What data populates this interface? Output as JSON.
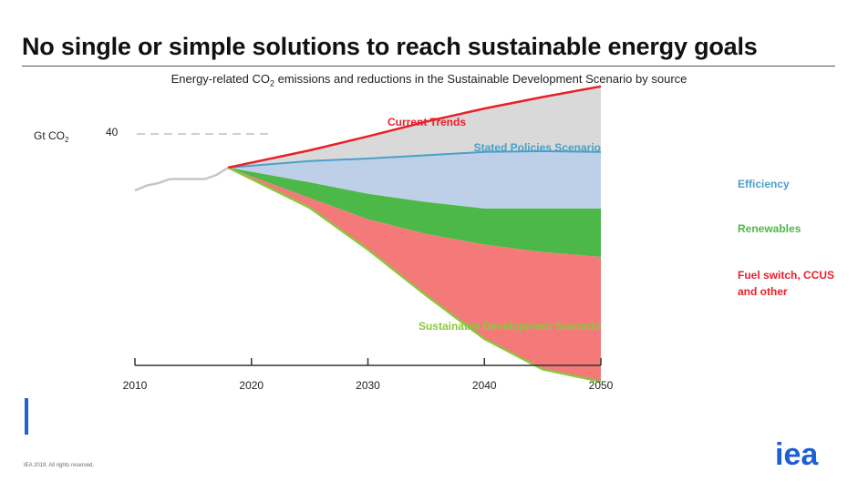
{
  "header": {
    "title": "No single or simple solutions to reach sustainable energy goals",
    "subtitle_prefix": "Energy-related CO",
    "subtitle_sub": "2",
    "subtitle_suffix": " emissions and reductions in the Sustainable Development Scenario by source"
  },
  "footer": {
    "copyright": "IEA 2019. All rights reserved.",
    "logo_text": "iea"
  },
  "colors": {
    "current_trends": "#e8202a",
    "stated_policies": "#4aa0c8",
    "historical": "#c6c6c6",
    "gap_fill": "#d9d9d9",
    "efficiency": "#bed0e8",
    "renewables": "#4cb848",
    "fuel_switch": "#f47a7a",
    "sds_line": "#8cc63f",
    "efficiency_label": "#4aa0c8",
    "renewables_label": "#4cb848",
    "fuel_switch_label": "#e8202a",
    "accent": "#1f5fd6"
  },
  "chart_data": {
    "type": "area",
    "title": "Energy-related CO2 emissions and reductions in the Sustainable Development Scenario by source",
    "ylabel": "Gt CO",
    "ylabel_sub": "2",
    "y_ref": {
      "value": 40,
      "label": "40",
      "style": "dashed"
    },
    "xlim": [
      2010,
      2050
    ],
    "ylim": [
      0,
      45
    ],
    "x_ticks": [
      2010,
      2020,
      2030,
      2040,
      2050
    ],
    "x_tick_labels": [
      "2010",
      "2020",
      "2030",
      "2040",
      "2050"
    ],
    "historical": {
      "x": [
        2010,
        2011,
        2012,
        2013,
        2014,
        2015,
        2016,
        2017,
        2018
      ],
      "y": [
        33.1,
        33.7,
        34.0,
        34.5,
        34.5,
        34.5,
        34.5,
        35.0,
        35.9
      ]
    },
    "series": [
      {
        "name": "Current Trends",
        "x": [
          2018,
          2025,
          2030,
          2035,
          2040,
          2045,
          2050
        ],
        "y": [
          35.9,
          38.0,
          39.7,
          41.5,
          43.1,
          44.5,
          45.8
        ]
      },
      {
        "name": "Stated Policies Scenario",
        "x": [
          2018,
          2025,
          2030,
          2035,
          2040,
          2045,
          2050
        ],
        "y": [
          35.9,
          36.7,
          37.0,
          37.4,
          37.8,
          37.9,
          37.8
        ]
      },
      {
        "name": "Efficiency",
        "x": [
          2018,
          2025,
          2030,
          2035,
          2040,
          2045,
          2050
        ],
        "y": [
          35.9,
          34.1,
          32.7,
          31.7,
          30.9,
          30.9,
          30.9
        ]
      },
      {
        "name": "Renewables",
        "x": [
          2018,
          2025,
          2030,
          2035,
          2040,
          2045,
          2050
        ],
        "y": [
          35.9,
          32.2,
          29.6,
          27.8,
          26.5,
          25.6,
          25.0
        ]
      },
      {
        "name": "Sustainable Development Scenario",
        "x": [
          2018,
          2025,
          2030,
          2035,
          2040,
          2045,
          2050
        ],
        "y": [
          35.9,
          31.0,
          25.9,
          20.3,
          15.0,
          11.3,
          9.8
        ]
      }
    ],
    "legend": [
      {
        "label": "Efficiency",
        "color_key": "efficiency_label"
      },
      {
        "label": "Renewables",
        "color_key": "renewables_label"
      },
      {
        "label": "Fuel switch, CCUS",
        "label2": "and other",
        "color_key": "fuel_switch_label"
      }
    ],
    "annotations": {
      "current_trends": "Current Trends",
      "stated_policies": "Stated Policies Scenario",
      "sds": "Sustainable Development Scenario"
    }
  }
}
